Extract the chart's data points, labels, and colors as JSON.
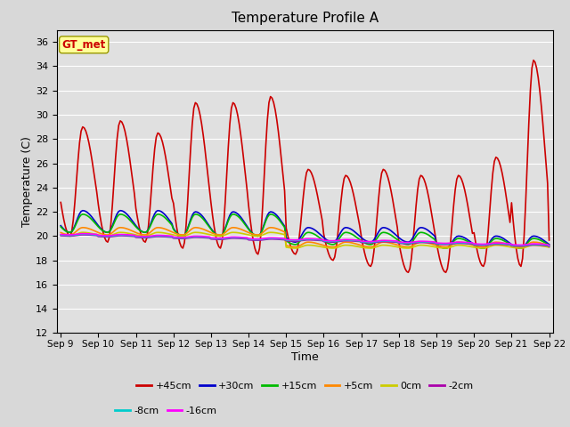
{
  "title": "Temperature Profile A",
  "xlabel": "Time",
  "ylabel": "Temperature (C)",
  "ylim": [
    12,
    37
  ],
  "yticks": [
    12,
    14,
    16,
    18,
    20,
    22,
    24,
    26,
    28,
    30,
    32,
    34,
    36
  ],
  "fig_bg_color": "#d8d8d8",
  "plot_bg_color": "#e0e0e0",
  "series_order": [
    "+45cm",
    "+30cm",
    "+15cm",
    "+5cm",
    "0cm",
    "-2cm",
    "-8cm",
    "-16cm"
  ],
  "series": {
    "+45cm": {
      "color": "#cc0000",
      "lw": 1.2
    },
    "+30cm": {
      "color": "#0000cc",
      "lw": 1.2
    },
    "+15cm": {
      "color": "#00bb00",
      "lw": 1.2
    },
    "+5cm": {
      "color": "#ff8800",
      "lw": 1.2
    },
    "0cm": {
      "color": "#cccc00",
      "lw": 1.2
    },
    "-2cm": {
      "color": "#aa00aa",
      "lw": 1.2
    },
    "-8cm": {
      "color": "#00cccc",
      "lw": 1.2
    },
    "-16cm": {
      "color": "#ff00ff",
      "lw": 1.2
    }
  },
  "annotation_text": "GT_met",
  "annotation_color": "#cc0000",
  "annotation_bg": "#ffff99",
  "annotation_edge": "#999900",
  "legend_row1": [
    "+45cm",
    "+30cm",
    "+15cm",
    "+5cm",
    "0cm",
    "-2cm"
  ],
  "legend_row2": [
    "-8cm",
    "-16cm"
  ]
}
